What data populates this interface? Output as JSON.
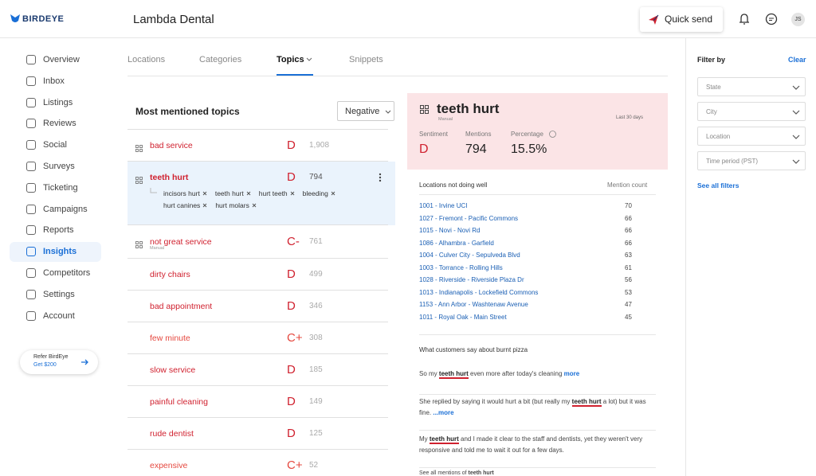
{
  "header": {
    "logo": "BIRDEYE",
    "business": "Lambda Dental",
    "quick_send": "Quick send",
    "avatar": "JS"
  },
  "sidebar": {
    "items": [
      "Overview",
      "Inbox",
      "Listings",
      "Reviews",
      "Social",
      "Surveys",
      "Ticketing",
      "Campaigns",
      "Reports",
      "Insights",
      "Competitors",
      "Settings",
      "Account"
    ],
    "active": 9,
    "refer": {
      "title": "Refer BirdEye",
      "reward": "Get $200"
    }
  },
  "tabs": {
    "items": [
      "Locations",
      "Categories",
      "Topics",
      "Snippets"
    ],
    "active": 2
  },
  "topics": {
    "title": "Most mentioned topics",
    "filter": "Negative",
    "selected": 1,
    "rows": [
      {
        "name": "bad service",
        "grade": "D",
        "count": "1,908"
      },
      {
        "name": "teeth hurt",
        "grade": "D",
        "count": "794",
        "tags": [
          "incisors hurt",
          "teeth hurt",
          "hurt teeth",
          "bleeding",
          "hurt canines",
          "hurt molars"
        ]
      },
      {
        "name": "not great service",
        "grade": "C-",
        "count": "761",
        "source": "Manual"
      },
      {
        "name": "dirty chairs",
        "grade": "D",
        "count": "499"
      },
      {
        "name": "bad appointment",
        "grade": "D",
        "count": "346"
      },
      {
        "name": "few minute",
        "grade": "C+",
        "count": "308"
      },
      {
        "name": "slow service",
        "grade": "D",
        "count": "185"
      },
      {
        "name": "painful cleaning",
        "grade": "D",
        "count": "149"
      },
      {
        "name": "rude dentist",
        "grade": "D",
        "count": "125"
      },
      {
        "name": "expensive",
        "grade": "C+",
        "count": "52"
      }
    ]
  },
  "detail": {
    "title": "teeth hurt",
    "source": "Manual",
    "period": "Last 30 days",
    "stats": [
      {
        "label": "Sentiment",
        "value": "D"
      },
      {
        "label": "Mentions",
        "value": "794"
      },
      {
        "label": "Percentage",
        "value": "15.5%"
      }
    ],
    "locations": {
      "title": "Locations not doing well",
      "count_header": "Mention count",
      "rows": [
        {
          "name": "1001 - Irvine UCI",
          "count": "70"
        },
        {
          "name": "1027 - Fremont - Pacific Commons",
          "count": "66"
        },
        {
          "name": "1015 - Novi - Novi Rd",
          "count": "66"
        },
        {
          "name": "1086 - Alhambra - Garfield",
          "count": "66"
        },
        {
          "name": "1004 - Culver City - Sepulveda Blvd",
          "count": "63"
        },
        {
          "name": "1003 - Torrance - Rolling Hills",
          "count": "61"
        },
        {
          "name": "1028 - Riverside - Riverside Plaza Dr",
          "count": "56"
        },
        {
          "name": "1013 - Indianapolis - Lockefield Commons",
          "count": "53"
        },
        {
          "name": "1153 - Ann Arbor - Washtenaw Avenue",
          "count": "47"
        },
        {
          "name": "1011 - Royal Oak - Main Street",
          "count": "45"
        }
      ]
    },
    "quotes": {
      "title": "What customers say about burnt pizza",
      "items": [
        {
          "before": "So my ",
          "highlight": "teeth hurt",
          "after": " even more after today's cleaning ",
          "more": "more"
        },
        {
          "before": "She replied by saying it would hurt a bit (but really my ",
          "highlight": "teeth hurt",
          "after": " a lot) but it was fine. ",
          "more": "...more"
        },
        {
          "before": "My ",
          "highlight": "teeth hurt",
          "after": " and I made it clear to the staff and dentists, yet they weren't very responsive and told me to wait it out for a few days."
        }
      ],
      "see_all": {
        "before": "See all mentions of ",
        "highlight": "teeth hurt"
      }
    }
  },
  "filters": {
    "title": "Filter by",
    "clear": "Clear",
    "items": [
      "State",
      "City",
      "Location",
      "Time period (PST)"
    ],
    "see_all": "See all filters"
  }
}
